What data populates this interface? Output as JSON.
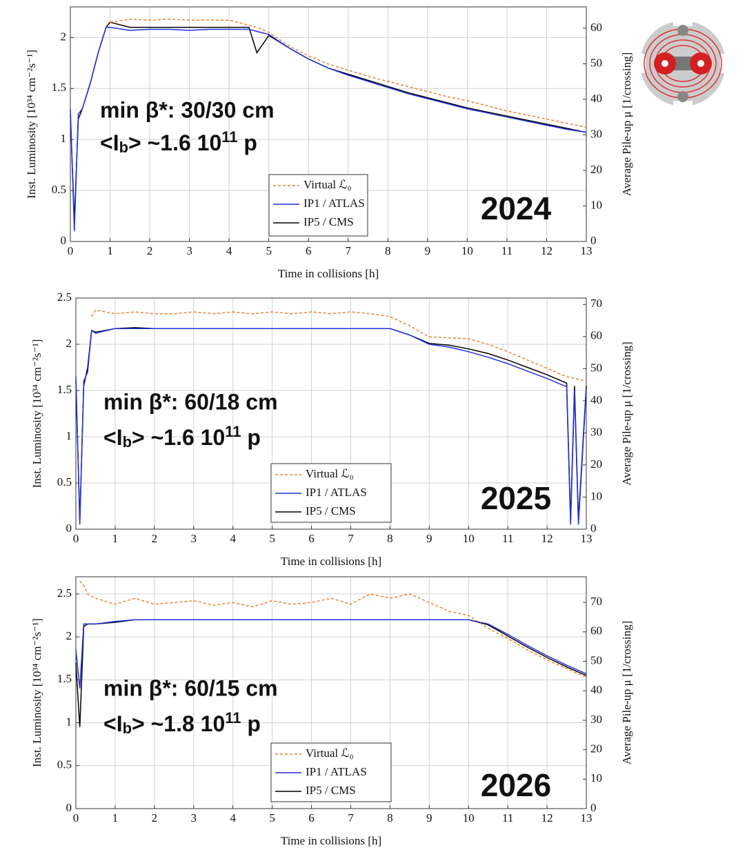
{
  "chart_data": [
    {
      "type": "line",
      "xlabel": "Time in collisions [h]",
      "ylabel": "Inst. Luminosity [10³⁴ cm⁻²s⁻¹]",
      "y2label": "Average Pile-up μ [1/crossing]",
      "year": "2024",
      "year_color": "#1f3a6e",
      "beta_label": "min β*: 30/30 cm",
      "intensity_label": [
        "<I",
        "b",
        "> ~1.6 10",
        "11",
        " p"
      ],
      "xlim": [
        0,
        13
      ],
      "xticks": [
        0,
        1,
        2,
        3,
        4,
        5,
        6,
        7,
        8,
        9,
        10,
        11,
        12,
        13
      ],
      "ylim": [
        0,
        2.3
      ],
      "yticks": [
        0,
        0.5,
        1,
        1.5,
        2
      ],
      "y2lim": [
        0,
        66
      ],
      "y2ticks": [
        0,
        10,
        20,
        30,
        40,
        50,
        60
      ],
      "grid": true,
      "x": [
        0,
        0.1,
        0.2,
        0.3,
        0.5,
        0.7,
        0.9,
        1,
        1.5,
        2,
        2.5,
        3,
        3.5,
        4,
        4.5,
        4.7,
        5,
        5.5,
        6,
        6.5,
        7,
        7.5,
        8,
        8.5,
        9,
        9.5,
        10,
        10.5,
        11,
        11.5,
        12,
        12.5,
        13
      ],
      "series": [
        {
          "name": "Virtual ℒ₀",
          "color": "#f07f2a",
          "dashed": true,
          "values": [
            null,
            null,
            null,
            null,
            null,
            null,
            null,
            2.15,
            2.18,
            2.17,
            2.18,
            2.17,
            2.17,
            2.17,
            2.12,
            2.1,
            2.05,
            1.92,
            1.82,
            1.74,
            1.68,
            1.62,
            1.57,
            1.52,
            1.47,
            1.42,
            1.38,
            1.33,
            1.28,
            1.24,
            1.2,
            1.16,
            1.12
          ]
        },
        {
          "name": "IP1 / ATLAS",
          "color": "#1f2fe0",
          "dashed": false,
          "values": [
            1.3,
            0.1,
            1.25,
            1.3,
            1.55,
            1.85,
            2.1,
            2.1,
            2.07,
            2.08,
            2.08,
            2.07,
            2.08,
            2.08,
            2.08,
            2.06,
            2.03,
            1.9,
            1.79,
            1.7,
            1.63,
            1.57,
            1.51,
            1.45,
            1.4,
            1.35,
            1.3,
            1.26,
            1.22,
            1.18,
            1.14,
            1.1,
            1.07
          ]
        },
        {
          "name": "IP5 / CMS",
          "color": "#000000",
          "dashed": false,
          "values": [
            1.25,
            0.2,
            1.2,
            1.3,
            1.55,
            1.85,
            2.1,
            2.15,
            2.1,
            2.1,
            2.1,
            2.1,
            2.1,
            2.1,
            2.1,
            1.85,
            2.02,
            1.9,
            1.79,
            1.7,
            1.64,
            1.58,
            1.52,
            1.46,
            1.41,
            1.36,
            1.31,
            1.27,
            1.23,
            1.19,
            1.15,
            1.11,
            1.07
          ]
        }
      ]
    },
    {
      "type": "line",
      "xlabel": "Time in collisions [h]",
      "ylabel": "Inst. Luminosity [10³⁴ cm⁻²s⁻¹]",
      "y2label": "Average Pile-up μ [1/crossing]",
      "year": "2025",
      "year_color": "#1a8a3a",
      "beta_label": "min β*: 60/18 cm",
      "intensity_label": [
        "<I",
        "b",
        "> ~1.6 10",
        "11",
        " p"
      ],
      "xlim": [
        0,
        13
      ],
      "xticks": [
        0,
        1,
        2,
        3,
        4,
        5,
        6,
        7,
        8,
        9,
        10,
        11,
        12,
        13
      ],
      "ylim": [
        0,
        2.5
      ],
      "yticks": [
        0,
        0.5,
        1,
        1.5,
        2,
        2.5
      ],
      "y2lim": [
        0,
        72
      ],
      "y2ticks": [
        0,
        10,
        20,
        30,
        40,
        50,
        60,
        70
      ],
      "grid": true,
      "x": [
        0,
        0.1,
        0.2,
        0.3,
        0.4,
        0.5,
        1,
        1.5,
        2,
        2.5,
        3,
        3.5,
        4,
        4.5,
        5,
        5.5,
        6,
        6.5,
        7,
        7.5,
        8,
        8.5,
        9,
        9.5,
        10,
        10.5,
        11,
        11.5,
        12,
        12.5,
        12.6,
        12.7,
        12.8,
        13
      ],
      "series": [
        {
          "name": "Virtual ℒ₀",
          "color": "#f07f2a",
          "dashed": true,
          "values": [
            null,
            null,
            null,
            null,
            2.3,
            2.37,
            2.33,
            2.35,
            2.33,
            2.33,
            2.35,
            2.33,
            2.35,
            2.33,
            2.35,
            2.33,
            2.35,
            2.33,
            2.35,
            2.33,
            2.3,
            2.2,
            2.08,
            2.07,
            2.06,
            2.0,
            1.92,
            1.83,
            1.74,
            1.65,
            1.64,
            1.63,
            1.62,
            1.6
          ]
        },
        {
          "name": "IP1 / ATLAS",
          "color": "#1f2fe0",
          "dashed": false,
          "values": [
            1.65,
            0.05,
            1.6,
            1.7,
            2.15,
            2.12,
            2.17,
            2.17,
            2.17,
            2.17,
            2.17,
            2.17,
            2.17,
            2.17,
            2.17,
            2.17,
            2.17,
            2.17,
            2.17,
            2.17,
            2.17,
            2.1,
            2.0,
            1.97,
            1.92,
            1.86,
            1.79,
            1.71,
            1.63,
            1.54,
            0.05,
            1.5,
            0.05,
            1.52
          ]
        },
        {
          "name": "IP5 / CMS",
          "color": "#000000",
          "dashed": false,
          "values": [
            1.6,
            0.1,
            1.55,
            1.75,
            2.15,
            2.13,
            2.17,
            2.18,
            2.17,
            2.17,
            2.17,
            2.17,
            2.17,
            2.17,
            2.17,
            2.17,
            2.17,
            2.17,
            2.17,
            2.17,
            2.17,
            2.1,
            2.01,
            1.99,
            1.95,
            1.9,
            1.83,
            1.75,
            1.67,
            1.58,
            0.1,
            1.55,
            0.1,
            1.55
          ]
        }
      ]
    },
    {
      "type": "line",
      "xlabel": "Time in collisions [h]",
      "ylabel": "Inst. Luminosity [10³⁴ cm⁻²s⁻¹]",
      "y2label": "Average Pile-up μ [1/crossing]",
      "year": "2026",
      "year_color": "#1f3a6e",
      "beta_label": "min β*: 60/15 cm",
      "intensity_label": [
        "<I",
        "b",
        "> ~1.8 10",
        "11",
        " p"
      ],
      "xlim": [
        0,
        13
      ],
      "xticks": [
        0,
        1,
        2,
        3,
        4,
        5,
        6,
        7,
        8,
        9,
        10,
        11,
        12,
        13
      ],
      "ylim": [
        0,
        2.7
      ],
      "yticks": [
        0,
        0.5,
        1,
        1.5,
        2,
        2.5
      ],
      "y2lim": [
        0,
        78.7
      ],
      "y2ticks": [
        0,
        10,
        20,
        30,
        40,
        50,
        60,
        70
      ],
      "grid": true,
      "x": [
        0,
        0.1,
        0.2,
        0.3,
        0.5,
        1,
        1.5,
        2,
        2.5,
        3,
        3.5,
        4,
        4.5,
        5,
        5.5,
        6,
        6.5,
        7,
        7.5,
        8,
        8.5,
        9,
        9.5,
        10,
        10.5,
        11,
        11.5,
        12,
        12.5,
        13
      ],
      "series": [
        {
          "name": "Virtual ℒ₀",
          "color": "#f07f2a",
          "dashed": true,
          "values": [
            null,
            2.65,
            2.6,
            2.5,
            2.45,
            2.38,
            2.45,
            2.38,
            2.4,
            2.42,
            2.37,
            2.4,
            2.35,
            2.42,
            2.38,
            2.4,
            2.45,
            2.38,
            2.5,
            2.45,
            2.5,
            2.4,
            2.3,
            2.25,
            2.1,
            1.98,
            1.85,
            1.73,
            1.63,
            1.53
          ]
        },
        {
          "name": "IP1 / ATLAS",
          "color": "#1f2fe0",
          "dashed": false,
          "values": [
            1.85,
            1.4,
            2.15,
            2.15,
            2.15,
            2.18,
            2.2,
            2.2,
            2.2,
            2.2,
            2.2,
            2.2,
            2.2,
            2.2,
            2.2,
            2.2,
            2.2,
            2.2,
            2.2,
            2.2,
            2.2,
            2.2,
            2.2,
            2.2,
            2.15,
            2.03,
            1.9,
            1.78,
            1.67,
            1.57
          ]
        },
        {
          "name": "IP5 / CMS",
          "color": "#000000",
          "dashed": false,
          "values": [
            1.7,
            0.95,
            2.12,
            2.15,
            2.15,
            2.17,
            2.2,
            2.2,
            2.2,
            2.2,
            2.2,
            2.2,
            2.2,
            2.2,
            2.2,
            2.2,
            2.2,
            2.2,
            2.2,
            2.2,
            2.2,
            2.2,
            2.2,
            2.2,
            2.14,
            2.01,
            1.88,
            1.76,
            1.65,
            1.55
          ]
        }
      ]
    }
  ]
}
